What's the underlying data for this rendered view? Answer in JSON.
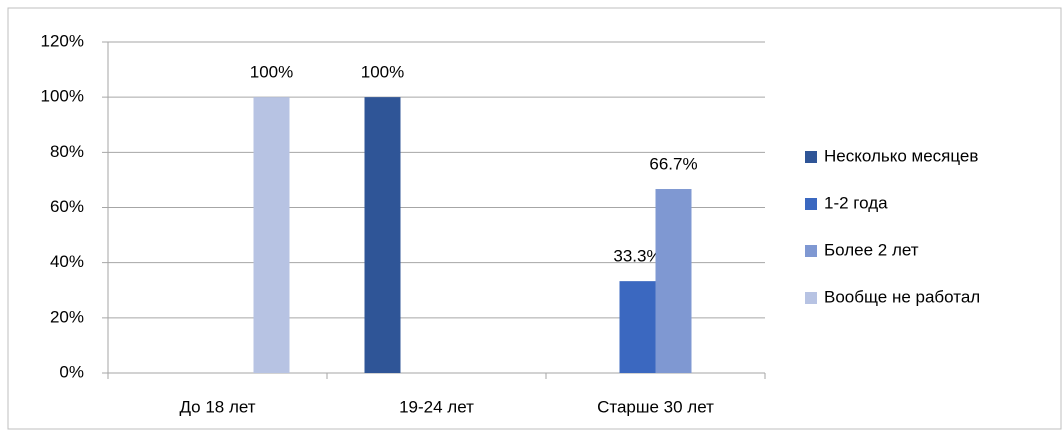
{
  "chart_data": {
    "type": "bar",
    "categories": [
      "До 18 лет",
      "19-24 лет",
      "Старше 30 лет"
    ],
    "series": [
      {
        "name": "Несколько месяцев",
        "color": "#2f5597",
        "values": [
          null,
          100,
          null
        ],
        "value_labels": [
          null,
          "100%",
          null
        ]
      },
      {
        "name": "1-2 года",
        "color": "#3b68c0",
        "values": [
          null,
          null,
          33.3
        ],
        "value_labels": [
          null,
          null,
          "33.3%"
        ]
      },
      {
        "name": "Более 2 лет",
        "color": "#7f98d2",
        "values": [
          null,
          null,
          66.7
        ],
        "value_labels": [
          null,
          null,
          "66.7%"
        ]
      },
      {
        "name": "Вообще не работал",
        "color": "#b7c3e3",
        "values": [
          100,
          null,
          null
        ],
        "value_labels": [
          "100%",
          null,
          null
        ]
      }
    ],
    "ylim": [
      0,
      120
    ],
    "yticks": [
      {
        "value": 0,
        "label": "0%"
      },
      {
        "value": 20,
        "label": "20%"
      },
      {
        "value": 40,
        "label": "40%"
      },
      {
        "value": 60,
        "label": "60%"
      },
      {
        "value": 80,
        "label": "80%"
      },
      {
        "value": 100,
        "label": "100%"
      },
      {
        "value": 120,
        "label": "120%"
      }
    ],
    "grid": true,
    "legend": "right"
  }
}
